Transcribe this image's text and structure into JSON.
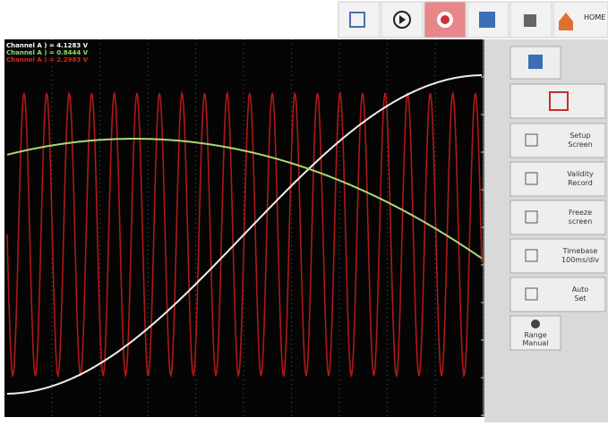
{
  "readouts": [
    {
      "text": "Channel A ) = 4.1283 V",
      "color": "#ffffff"
    },
    {
      "text": "Channel A ) = 0.8444 V",
      "color": "#8ee06a"
    },
    {
      "text": "Channel A ) = 2.2983 V",
      "color": "#e02020"
    }
  ],
  "toolbar": {
    "home": "HOME"
  },
  "side_buttons": [
    {
      "line1": "Setup",
      "line2": "Screen"
    },
    {
      "line1": "Validity",
      "line2": "Record"
    },
    {
      "line1": "Freeze",
      "line2": "screen"
    },
    {
      "line1": "Timebase",
      "line2": "100ms/div"
    },
    {
      "line1": "Auto",
      "line2": "Set"
    },
    {
      "line1": "Range",
      "line2": "Manual"
    }
  ]
}
